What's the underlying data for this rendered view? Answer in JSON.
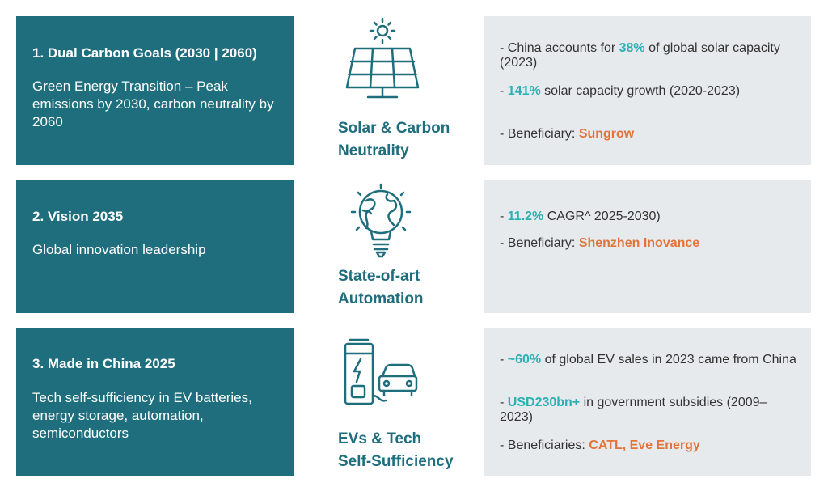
{
  "colors": {
    "panel_teal": "#1e6e7e",
    "panel_grey": "#e6eaec",
    "highlight_teal": "#2cb1b3",
    "highlight_orange": "#e2743a",
    "body_text": "#333333"
  },
  "rows": [
    {
      "heading": "1. Dual Carbon Goals (2030 | 2060)",
      "description": "Green Energy Transition – Peak emissions by 2030, carbon neutrality by 2060",
      "icon": "solar-panel-icon",
      "caption_line1": "Solar & Carbon",
      "caption_line2": "Neutrality",
      "points": [
        {
          "pre": "- China accounts for ",
          "hl": "38%",
          "post": " of global solar capacity (2023)"
        },
        {
          "pre": "- ",
          "hl": "141%",
          "post": " solar capacity growth (2020-2023)"
        },
        {
          "pre": "- Beneficiary: ",
          "hl": "Sungrow",
          "post": ""
        }
      ]
    },
    {
      "heading": "2. Vision 2035",
      "description": "Global innovation leadership",
      "icon": "globe-lightbulb-icon",
      "caption_line1": "State-of-art",
      "caption_line2": "Automation",
      "points": [
        {
          "pre": "- ",
          "hl": "11.2%",
          "post": " CAGR^ 2025-2030)"
        },
        {
          "pre": "- Beneficiary: ",
          "hl": "Shenzhen Inovance",
          "post": ""
        }
      ]
    },
    {
      "heading": "3. Made in China 2025",
      "description": "Tech self-sufficiency in EV batteries, energy storage, automation, semiconductors",
      "icon": "ev-charger-icon",
      "caption_line1": "EVs & Tech",
      "caption_line2": "Self-Sufficiency",
      "points": [
        {
          "pre": " - ",
          "hl": "~60%",
          "post": " of global EV sales in 2023 came from China"
        },
        {
          "pre": "- ",
          "hl": "USD230bn+",
          "post": " in government subsidies (2009–2023)"
        },
        {
          "pre": "- Beneficiaries: ",
          "hl": "CATL, Eve Energy",
          "post": ""
        }
      ]
    }
  ]
}
